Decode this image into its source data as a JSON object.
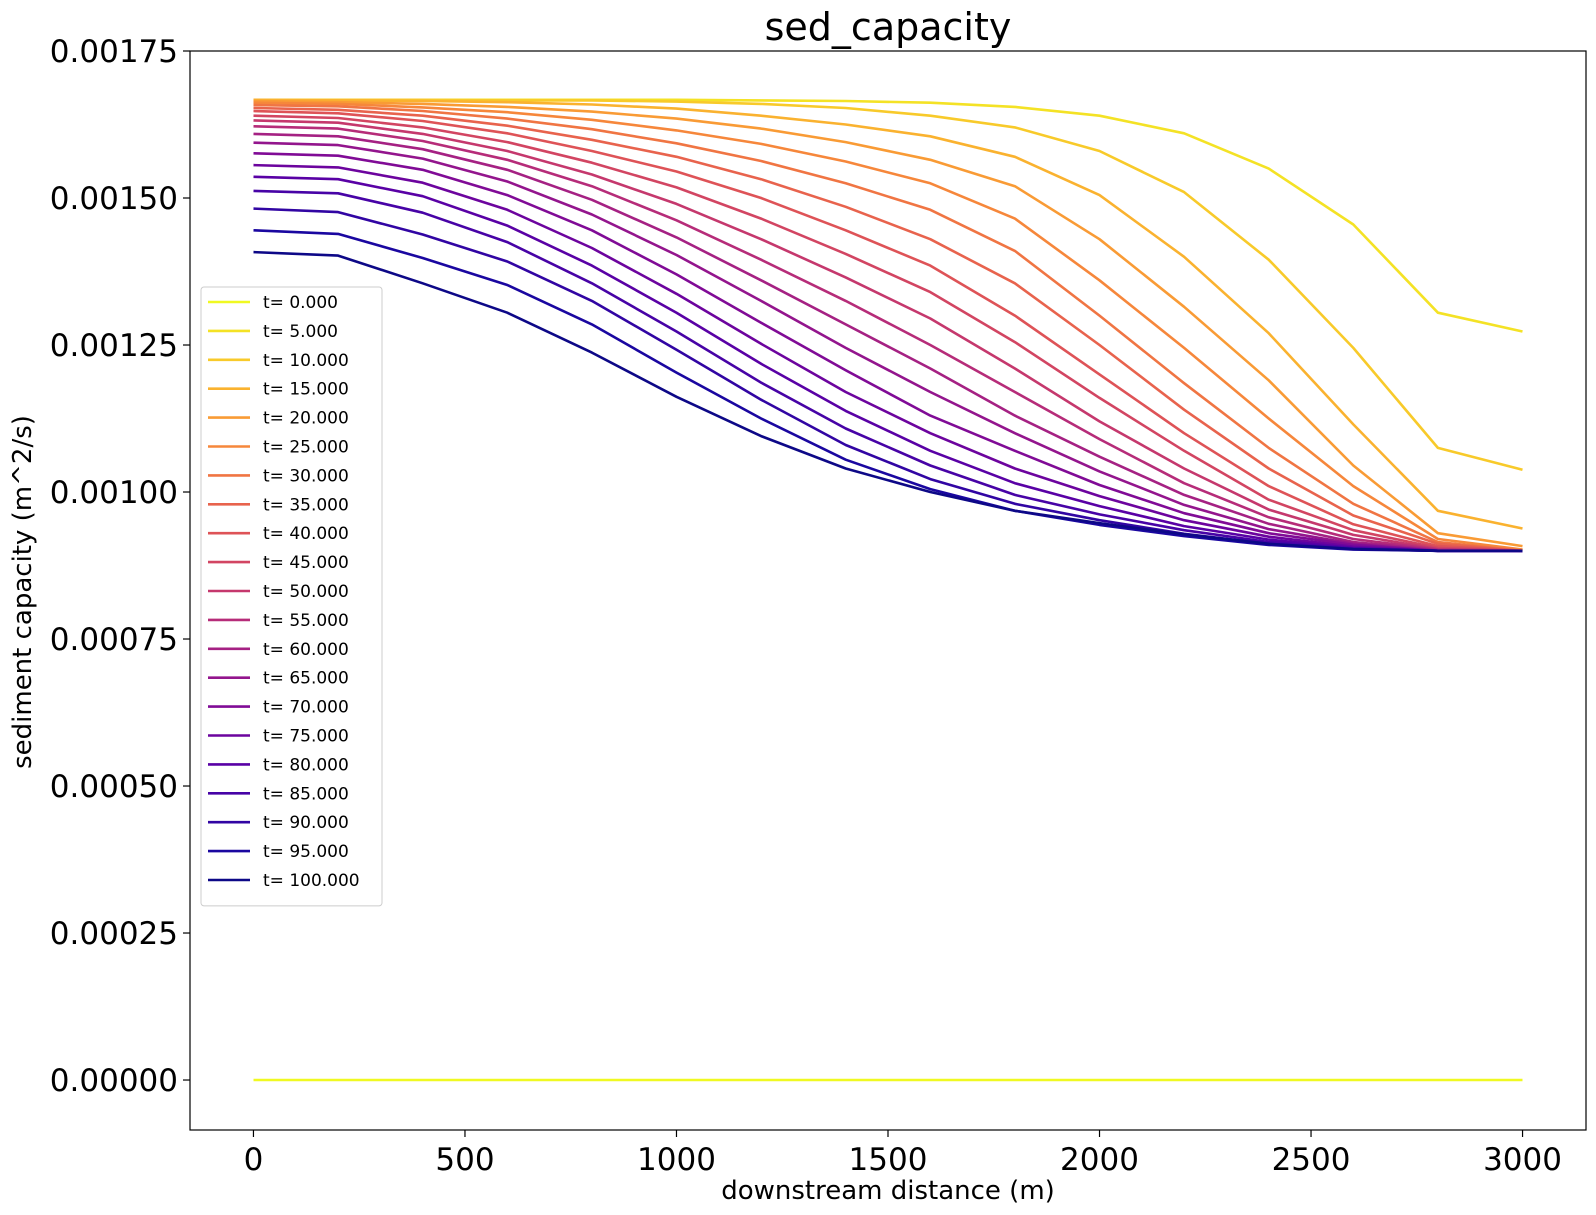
{
  "chart_data": {
    "type": "line",
    "title": "sed_capacity",
    "xlabel": "downstream distance (m)",
    "ylabel": "sediment capacity (m^2/s)",
    "xlim": [
      -150,
      3150
    ],
    "ylim": [
      -8.5e-05,
      0.00175
    ],
    "xticks": [
      0,
      500,
      1000,
      1500,
      2000,
      2500,
      3000
    ],
    "xtick_labels": [
      "0",
      "500",
      "1000",
      "1500",
      "2000",
      "2500",
      "3000"
    ],
    "yticks": [
      0,
      0.00025,
      0.0005,
      0.00075,
      0.001,
      0.00125,
      0.0015,
      0.00175
    ],
    "ytick_labels": [
      "0.00000",
      "0.00025",
      "0.00050",
      "0.00075",
      "0.00100",
      "0.00125",
      "0.00150",
      "0.00175"
    ],
    "grid": false,
    "legend_position": "left",
    "x": [
      0,
      200,
      400,
      600,
      800,
      1000,
      1200,
      1400,
      1600,
      1800,
      2000,
      2200,
      2400,
      2600,
      2800,
      3000
    ],
    "series": [
      {
        "name": "t= 0.000",
        "color": "#f0f921",
        "values": [
          0,
          0,
          0,
          0,
          0,
          0,
          0,
          0,
          0,
          0,
          0,
          0,
          0,
          0,
          0,
          0
        ]
      },
      {
        "name": "t= 5.000",
        "color": "#f4e225",
        "values": [
          0.001667,
          0.001667,
          0.001667,
          0.001667,
          0.001667,
          0.001667,
          0.001666,
          0.001665,
          0.001662,
          0.001655,
          0.00164,
          0.00161,
          0.00155,
          0.001455,
          0.001305,
          0.001273
        ]
      },
      {
        "name": "t= 10.000",
        "color": "#f8ca2a",
        "values": [
          0.001667,
          0.001667,
          0.001667,
          0.001666,
          0.001666,
          0.001664,
          0.00166,
          0.001653,
          0.00164,
          0.00162,
          0.00158,
          0.00151,
          0.001395,
          0.001245,
          0.001075,
          0.001038
        ]
      },
      {
        "name": "t= 15.000",
        "color": "#fab22f",
        "values": [
          0.001667,
          0.001666,
          0.001665,
          0.001663,
          0.001659,
          0.001652,
          0.00164,
          0.001625,
          0.001605,
          0.00157,
          0.001505,
          0.0014,
          0.00127,
          0.001115,
          0.000968,
          0.000938
        ]
      },
      {
        "name": "t= 20.000",
        "color": "#f99b35",
        "values": [
          0.001665,
          0.001663,
          0.00166,
          0.001655,
          0.001647,
          0.001635,
          0.001618,
          0.001595,
          0.001565,
          0.00152,
          0.00143,
          0.001315,
          0.00119,
          0.001045,
          0.00093,
          0.000908
        ]
      },
      {
        "name": "t= 25.000",
        "color": "#f6873b",
        "values": [
          0.001662,
          0.00166,
          0.001654,
          0.001646,
          0.001633,
          0.001615,
          0.001592,
          0.001562,
          0.001525,
          0.001465,
          0.00136,
          0.001245,
          0.001125,
          0.00101,
          0.00092,
          0.000902
        ]
      },
      {
        "name": "t= 30.000",
        "color": "#f07543",
        "values": [
          0.001658,
          0.001656,
          0.001648,
          0.001635,
          0.001617,
          0.001593,
          0.001563,
          0.001525,
          0.00148,
          0.00141,
          0.0013,
          0.001185,
          0.001075,
          0.00098,
          0.000915,
          0.0009
        ]
      },
      {
        "name": "t= 35.000",
        "color": "#e8634d",
        "values": [
          0.001653,
          0.00165,
          0.00164,
          0.001623,
          0.001599,
          0.00157,
          0.001532,
          0.001485,
          0.00143,
          0.001355,
          0.00125,
          0.00114,
          0.00104,
          0.00096,
          0.000912,
          0.0009
        ]
      },
      {
        "name": "t= 40.000",
        "color": "#de5357",
        "values": [
          0.001648,
          0.001644,
          0.001631,
          0.00161,
          0.00158,
          0.001545,
          0.0015,
          0.001445,
          0.001385,
          0.0013,
          0.0012,
          0.0011,
          0.00101,
          0.000945,
          0.000908,
          0.0009
        ]
      },
      {
        "name": "t= 45.000",
        "color": "#d24562",
        "values": [
          0.00164,
          0.001636,
          0.00162,
          0.001595,
          0.00156,
          0.001518,
          0.001465,
          0.001405,
          0.00134,
          0.001255,
          0.00116,
          0.00107,
          0.000987,
          0.000935,
          0.000905,
          0.0009
        ]
      },
      {
        "name": "t= 50.000",
        "color": "#c5386d",
        "values": [
          0.001632,
          0.001628,
          0.001609,
          0.00158,
          0.00154,
          0.00149,
          0.00143,
          0.001365,
          0.001295,
          0.00121,
          0.00112,
          0.00104,
          0.00097,
          0.000927,
          0.000903,
          0.0009
        ]
      },
      {
        "name": "t= 55.000",
        "color": "#b62c79",
        "values": [
          0.001622,
          0.001618,
          0.001597,
          0.001565,
          0.00152,
          0.001462,
          0.001395,
          0.001325,
          0.00125,
          0.00117,
          0.00109,
          0.001015,
          0.000957,
          0.00092,
          0.000902,
          0.0009
        ]
      },
      {
        "name": "t= 60.000",
        "color": "#a52183",
        "values": [
          0.001609,
          0.001605,
          0.001583,
          0.001548,
          0.001497,
          0.001433,
          0.00136,
          0.001285,
          0.00121,
          0.00113,
          0.00106,
          0.000995,
          0.000946,
          0.000915,
          0.000901,
          0.0009
        ]
      },
      {
        "name": "t= 65.000",
        "color": "#93158d",
        "values": [
          0.001594,
          0.00159,
          0.001567,
          0.001528,
          0.001472,
          0.001403,
          0.001325,
          0.001245,
          0.00117,
          0.0011,
          0.001035,
          0.000978,
          0.000937,
          0.000912,
          0.0009,
          0.0009
        ]
      },
      {
        "name": "t= 70.000",
        "color": "#800b96",
        "values": [
          0.001576,
          0.001572,
          0.001548,
          0.001505,
          0.001445,
          0.00137,
          0.001288,
          0.001207,
          0.00113,
          0.00107,
          0.001012,
          0.000964,
          0.00093,
          0.00091,
          0.0009,
          0.0009
        ]
      },
      {
        "name": "t= 75.000",
        "color": "#6c049e",
        "values": [
          0.001556,
          0.001552,
          0.001526,
          0.00148,
          0.001415,
          0.001337,
          0.001252,
          0.00117,
          0.0011,
          0.00104,
          0.000993,
          0.000952,
          0.000924,
          0.000907,
          0.0009,
          0.0009
        ]
      },
      {
        "name": "t= 80.000",
        "color": "#5901a5",
        "values": [
          0.001536,
          0.001532,
          0.001503,
          0.001453,
          0.001385,
          0.001305,
          0.001218,
          0.001138,
          0.00107,
          0.001015,
          0.000976,
          0.000942,
          0.000919,
          0.000905,
          0.0009,
          0.0009
        ]
      },
      {
        "name": "t= 85.000",
        "color": "#4703a6",
        "values": [
          0.001512,
          0.001508,
          0.001475,
          0.001425,
          0.001355,
          0.001273,
          0.001186,
          0.001108,
          0.001045,
          0.000995,
          0.000962,
          0.000935,
          0.000915,
          0.000904,
          0.0009,
          0.0009
        ]
      },
      {
        "name": "t= 90.000",
        "color": "#3105a3",
        "values": [
          0.001482,
          0.001476,
          0.001438,
          0.001392,
          0.001325,
          0.001242,
          0.001157,
          0.00108,
          0.001022,
          0.00098,
          0.000952,
          0.000929,
          0.000912,
          0.000903,
          0.0009,
          0.0009
        ]
      },
      {
        "name": "t= 95.000",
        "color": "#1a07a0",
        "values": [
          0.001445,
          0.001439,
          0.001398,
          0.001352,
          0.001285,
          0.001203,
          0.001125,
          0.001055,
          0.001005,
          0.000968,
          0.000944,
          0.000925,
          0.00091,
          0.000902,
          0.0009,
          0.0009
        ]
      },
      {
        "name": "t= 100.000",
        "color": "#0d0887",
        "values": [
          0.001408,
          0.001402,
          0.001355,
          0.001305,
          0.001237,
          0.001162,
          0.001095,
          0.00104,
          0.001,
          0.000968,
          0.000947,
          0.000928,
          0.000912,
          0.000903,
          0.0009,
          0.0009
        ]
      }
    ]
  }
}
